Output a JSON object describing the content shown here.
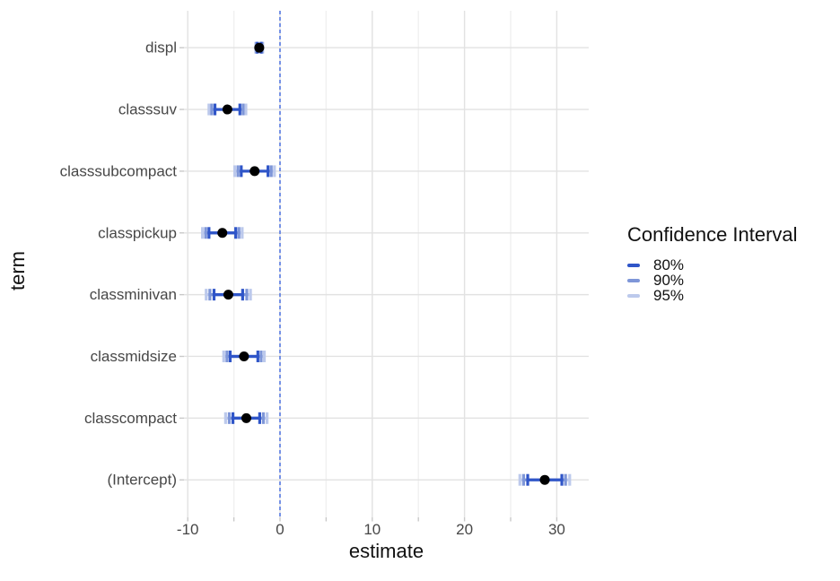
{
  "chart_data": {
    "type": "pointrange",
    "title": "",
    "xlabel": "estimate",
    "ylabel": "term",
    "xlim": [
      -10.4,
      33.5
    ],
    "x_major_ticks": [
      -10,
      0,
      10,
      20,
      30
    ],
    "x_minor_ticks": [
      -5,
      5,
      15,
      25
    ],
    "grid": "major and minor vertical gridlines; one horizontal gridline per category; white background",
    "reference_line_x": 0,
    "legend": {
      "title": "Confidence Interval",
      "position": "right",
      "entries": [
        {
          "label": "80%",
          "color": "#2F55C8"
        },
        {
          "label": "90%",
          "color": "#7E96D8"
        },
        {
          "label": "95%",
          "color": "#BCC9EC"
        }
      ]
    },
    "terms": [
      {
        "term": "displ",
        "estimate": -2.25,
        "ci80": [
          -2.45,
          -2.05
        ],
        "ci90": [
          -2.54,
          -1.96
        ],
        "ci95": [
          -2.63,
          -1.87
        ]
      },
      {
        "term": "classsuv",
        "estimate": -5.7,
        "ci80": [
          -7.05,
          -4.35
        ],
        "ci90": [
          -7.4,
          -4.0
        ],
        "ci95": [
          -7.7,
          -3.7
        ]
      },
      {
        "term": "classsubcompact",
        "estimate": -2.75,
        "ci80": [
          -4.2,
          -1.3
        ],
        "ci90": [
          -4.55,
          -0.95
        ],
        "ci95": [
          -4.9,
          -0.6
        ]
      },
      {
        "term": "classpickup",
        "estimate": -6.25,
        "ci80": [
          -7.7,
          -4.8
        ],
        "ci90": [
          -8.05,
          -4.45
        ],
        "ci95": [
          -8.4,
          -4.1
        ]
      },
      {
        "term": "classminivan",
        "estimate": -5.6,
        "ci80": [
          -7.15,
          -4.05
        ],
        "ci90": [
          -7.6,
          -3.6
        ],
        "ci95": [
          -8.0,
          -3.2
        ]
      },
      {
        "term": "classmidsize",
        "estimate": -3.9,
        "ci80": [
          -5.4,
          -2.4
        ],
        "ci90": [
          -5.75,
          -2.05
        ],
        "ci95": [
          -6.1,
          -1.7
        ]
      },
      {
        "term": "classcompact",
        "estimate": -3.65,
        "ci80": [
          -5.1,
          -2.2
        ],
        "ci90": [
          -5.5,
          -1.8
        ],
        "ci95": [
          -5.9,
          -1.4
        ]
      },
      {
        "term": "(Intercept)",
        "estimate": 28.7,
        "ci80": [
          26.85,
          30.55
        ],
        "ci90": [
          26.4,
          30.95
        ],
        "ci95": [
          26.0,
          31.4
        ]
      }
    ],
    "style": {
      "point_color": "#000000",
      "reference_line_color": "#4169E1",
      "grid_major_color": "#E2E2E2",
      "grid_minor_color": "#F0F0F0",
      "axis_tick_color": "#C9C9C9",
      "axis_text_color": "#474747",
      "axis_title_color": "#111111"
    }
  }
}
